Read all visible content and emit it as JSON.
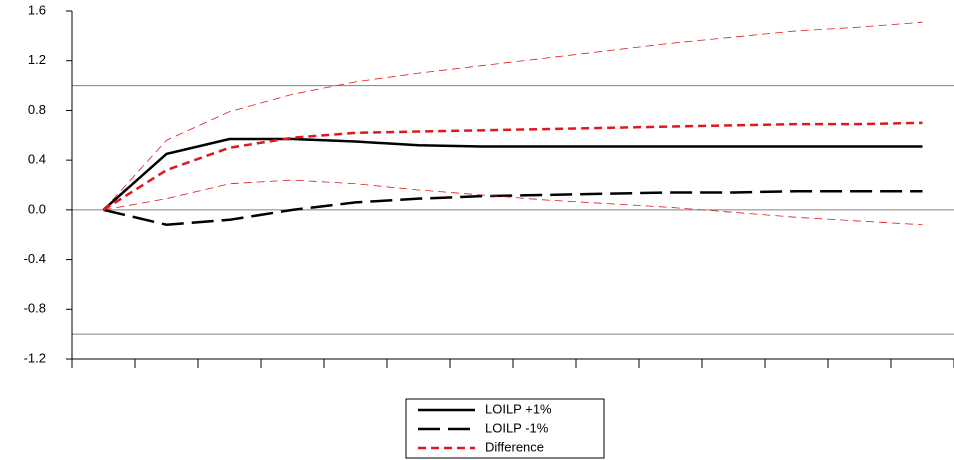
{
  "chart_data": {
    "type": "line",
    "categories": [
      null,
      null,
      null,
      null,
      null,
      null,
      null,
      null,
      null,
      null,
      null,
      null,
      null,
      null
    ],
    "series": [
      {
        "name": "LOILP +1%",
        "color": "#000000",
        "line_style": "solid",
        "width": 2.5,
        "values": [
          0,
          0.45,
          0.57,
          0.57,
          0.55,
          0.52,
          0.51,
          0.51,
          0.51,
          0.51,
          0.51,
          0.51,
          0.51,
          0.51
        ]
      },
      {
        "name": "LOILP -1%",
        "color": "#000000",
        "line_style": "longdash",
        "width": 2.5,
        "values": [
          0,
          -0.12,
          -0.08,
          0.0,
          0.06,
          0.09,
          0.11,
          0.12,
          0.13,
          0.14,
          0.14,
          0.15,
          0.15,
          0.15
        ]
      },
      {
        "name": "Difference",
        "color": "#e0181c",
        "line_style": "dash",
        "width": 2.5,
        "values": [
          0,
          0.32,
          0.5,
          0.58,
          0.62,
          0.63,
          0.64,
          0.65,
          0.66,
          0.67,
          0.68,
          0.69,
          0.69,
          0.7
        ]
      },
      {
        "color": "#e0181c",
        "line_style": "dash",
        "width": 0.8,
        "values": [
          0,
          0.56,
          0.79,
          0.93,
          1.03,
          1.1,
          1.16,
          1.22,
          1.28,
          1.34,
          1.39,
          1.44,
          1.47,
          1.51
        ]
      },
      {
        "color": "#e0181c",
        "line_style": "dash",
        "width": 0.8,
        "values": [
          0,
          0.09,
          0.21,
          0.24,
          0.21,
          0.16,
          0.12,
          0.08,
          0.05,
          0.02,
          -0.02,
          -0.06,
          -0.09,
          -0.12
        ]
      }
    ],
    "ylim": [
      -1.2,
      1.6
    ],
    "yticks": [
      -1.2,
      -0.8,
      -0.4,
      {
        "value": 0,
        "label": "0.0"
      },
      0.4,
      0.8,
      1.2,
      1.6
    ],
    "reference_lines": [
      -1,
      0,
      1
    ],
    "legend": "bottom"
  }
}
